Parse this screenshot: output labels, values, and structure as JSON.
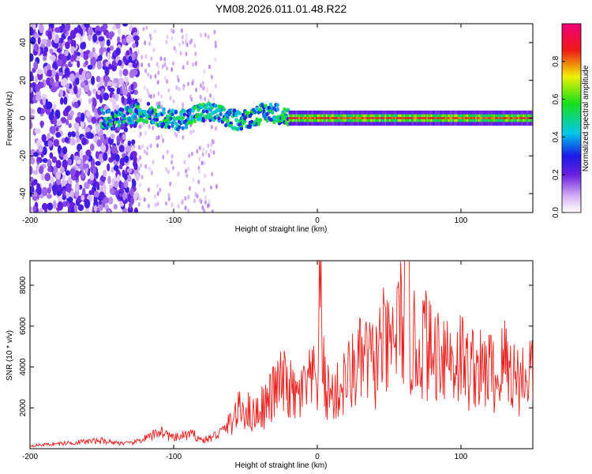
{
  "title": "YM08.2026.011.01.48.R22",
  "colors": {
    "snr_line": "#e8201e",
    "axis": "#000000"
  },
  "chart_data": [
    {
      "type": "heatmap",
      "title": "YM08.2026.011.01.48.R22",
      "xlabel": "Height of straight line (km)",
      "ylabel": "Frequency (Hz)",
      "xlim": [
        -200,
        150
      ],
      "ylim": [
        -50,
        50
      ],
      "xticks": [
        -200,
        -100,
        0,
        100
      ],
      "yticks": [
        -40,
        -20,
        0,
        20,
        40
      ],
      "colorbar": {
        "label": "Normalized spectral amplitude",
        "range": [
          0,
          1
        ],
        "ticks": [
          "0.0",
          "0.2",
          "0.4",
          "0.6",
          "0.8"
        ],
        "colormap": "rainbow (white-violet-blue-cyan-green-yellow-red-magenta)"
      },
      "description_bands": [
        {
          "x_range": [
            -200,
            -125
          ],
          "y_range": [
            -50,
            50
          ],
          "amplitude": 0.15
        },
        {
          "x_range": [
            -125,
            -20
          ],
          "y_range": [
            -6,
            6
          ],
          "amplitude": 0.45
        },
        {
          "x_range": [
            -20,
            150
          ],
          "y_range": [
            -2,
            2
          ],
          "amplitude": 0.8
        }
      ]
    },
    {
      "type": "line",
      "xlabel": "Height of straight line (km)",
      "ylabel": "SNR (10 * v/v)",
      "xlim": [
        -200,
        150
      ],
      "ylim": [
        0,
        9200
      ],
      "xticks": [
        -200,
        -100,
        0,
        100
      ],
      "yticks": [
        2000,
        4000,
        6000,
        8000
      ],
      "series": [
        {
          "name": "SNR",
          "x": [
            -200,
            -190,
            -180,
            -170,
            -160,
            -150,
            -140,
            -130,
            -120,
            -115,
            -110,
            -105,
            -100,
            -95,
            -90,
            -85,
            -80,
            -75,
            -70,
            -65,
            -60,
            -55,
            -50,
            -45,
            -40,
            -35,
            -30,
            -25,
            -20,
            -15,
            -10,
            -5,
            0,
            2,
            5,
            10,
            15,
            20,
            25,
            30,
            35,
            40,
            45,
            50,
            55,
            60,
            62,
            65,
            70,
            75,
            80,
            85,
            90,
            95,
            100,
            105,
            110,
            115,
            120,
            125,
            130,
            135,
            140,
            145,
            150
          ],
          "values": [
            150,
            200,
            250,
            300,
            350,
            400,
            300,
            250,
            500,
            600,
            900,
            700,
            500,
            600,
            700,
            650,
            400,
            500,
            700,
            900,
            1400,
            1800,
            2000,
            1600,
            2000,
            2200,
            2800,
            3200,
            3000,
            2400,
            2800,
            3200,
            3400,
            7600,
            3000,
            2600,
            2800,
            3400,
            3800,
            4200,
            4400,
            4000,
            5200,
            4600,
            5800,
            6400,
            9100,
            5200,
            4800,
            5400,
            4400,
            5000,
            4800,
            4200,
            4600,
            3800,
            4200,
            3600,
            4000,
            3200,
            4400,
            3800,
            3400,
            3600,
            4000
          ]
        }
      ]
    }
  ]
}
